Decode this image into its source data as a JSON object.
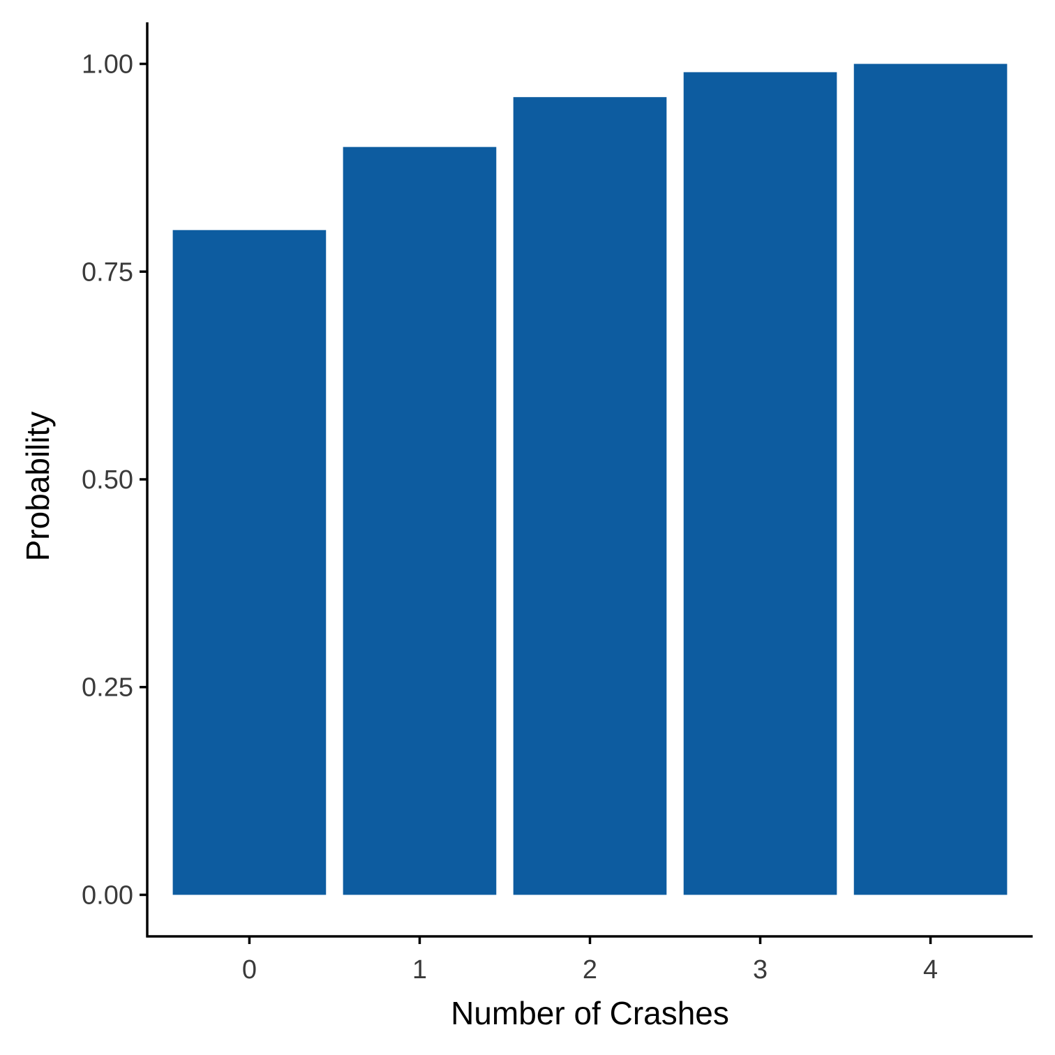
{
  "chart_data": {
    "type": "bar",
    "categories": [
      "0",
      "1",
      "2",
      "3",
      "4"
    ],
    "values": [
      0.8,
      0.9,
      0.96,
      0.99,
      1.0
    ],
    "xlabel": "Number of Crashes",
    "ylabel": "Probability",
    "ylim": [
      -0.05,
      1.05
    ],
    "yticks": [
      0.0,
      0.25,
      0.5,
      0.75,
      1.0
    ],
    "ytick_labels": [
      "0.00",
      "0.25",
      "0.50",
      "0.75",
      "1.00"
    ],
    "bar_color": "#0d5ca0",
    "grid": false,
    "legend": "none"
  }
}
